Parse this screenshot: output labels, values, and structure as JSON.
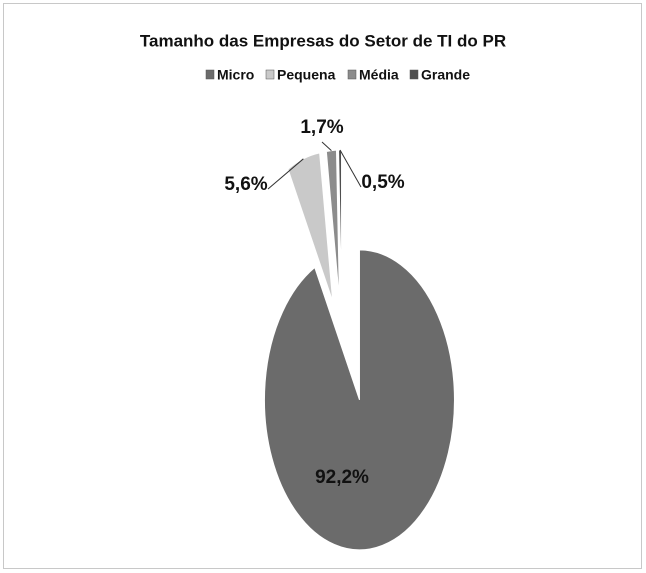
{
  "chart_data": {
    "type": "pie",
    "title": "Tamanho das Empresas do Setor de TI do PR",
    "categories": [
      "Micro",
      "Pequena",
      "Média",
      "Grande"
    ],
    "values": [
      92.2,
      5.6,
      1.7,
      0.5
    ],
    "value_labels": [
      "92,2%",
      "5,6%",
      "1,7%",
      "0,5%"
    ],
    "colors": [
      "#6b6b6b",
      "#c9c9c9",
      "#8c8c8c",
      "#4f4f4f"
    ],
    "legend": "top"
  }
}
